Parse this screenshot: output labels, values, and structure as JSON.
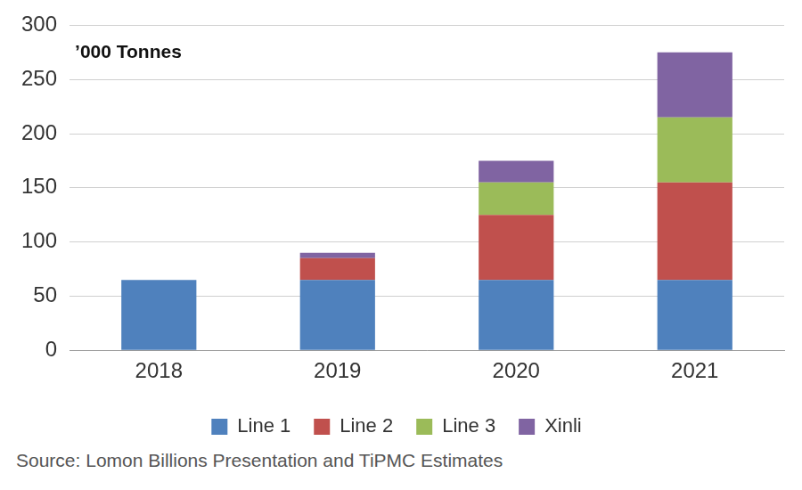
{
  "chart_data": {
    "type": "bar",
    "stacked": true,
    "y_label": "’000 Tonnes",
    "caption": "Source: Lomon Billions Presentation and TiPMC Estimates",
    "categories": [
      "2018",
      "2019",
      "2020",
      "2021"
    ],
    "series": [
      {
        "name": "Line 1",
        "color": "#4f81bd",
        "values": [
          65,
          65,
          65,
          65
        ]
      },
      {
        "name": "Line 2",
        "color": "#c0504d",
        "values": [
          0,
          20,
          60,
          90
        ]
      },
      {
        "name": "Line 3",
        "color": "#9bbb59",
        "values": [
          0,
          0,
          30,
          60
        ]
      },
      {
        "name": "Xinli",
        "color": "#8064a2",
        "values": [
          0,
          5,
          20,
          60
        ]
      }
    ],
    "ylim": [
      0,
      300
    ],
    "yticks": [
      0,
      50,
      100,
      150,
      200,
      250,
      300
    ],
    "grid": true,
    "legend": "bottom"
  }
}
